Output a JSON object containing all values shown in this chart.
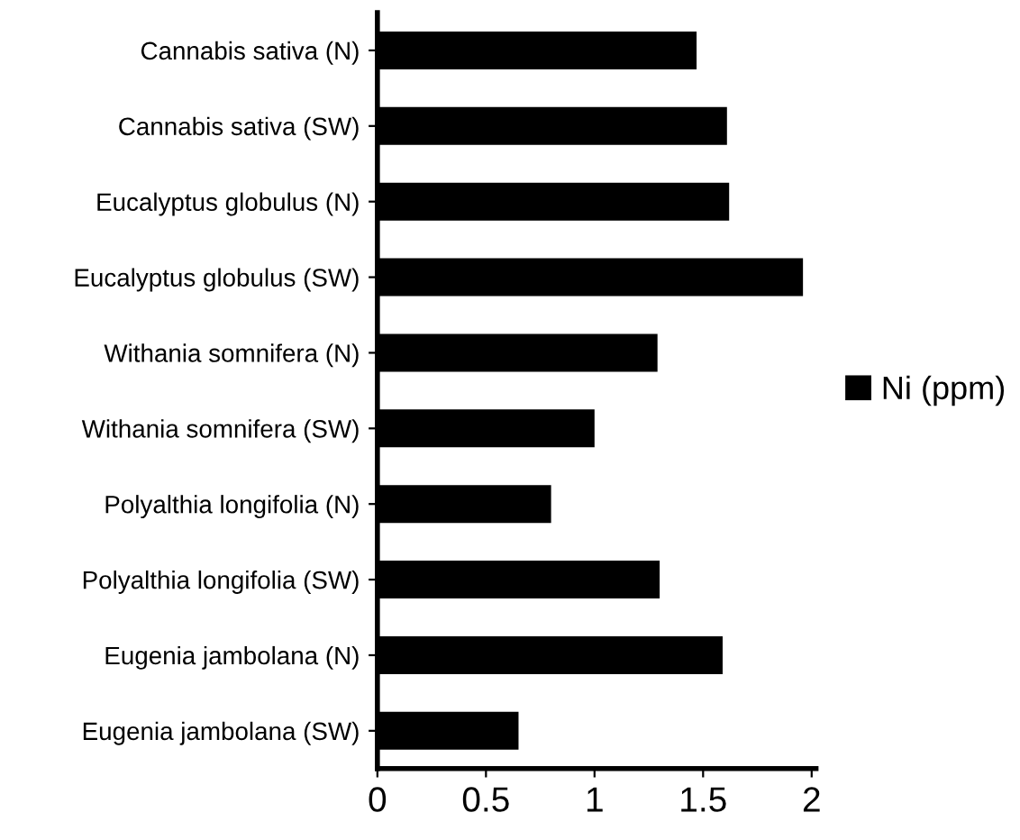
{
  "chart_data": {
    "type": "bar",
    "orientation": "horizontal",
    "categories": [
      "Cannabis sativa (N)",
      "Cannabis sativa (SW)",
      "Eucalyptus globulus (N)",
      "Eucalyptus globulus (SW)",
      "Withania somnifera (N)",
      "Withania somnifera (SW)",
      "Polyalthia longifolia (N)",
      "Polyalthia longifolia (SW)",
      "Eugenia jambolana (N)",
      "Eugenia jambolana (SW)"
    ],
    "series": [
      {
        "name": "Ni (ppm)",
        "color": "#000000",
        "values": [
          1.47,
          1.61,
          1.62,
          1.96,
          1.29,
          1.0,
          0.8,
          1.3,
          1.59,
          0.65
        ]
      }
    ],
    "xlim": [
      0,
      2.02
    ],
    "xticks": [
      0,
      0.5,
      1,
      1.5,
      2
    ],
    "grid": false,
    "legend": "right"
  }
}
